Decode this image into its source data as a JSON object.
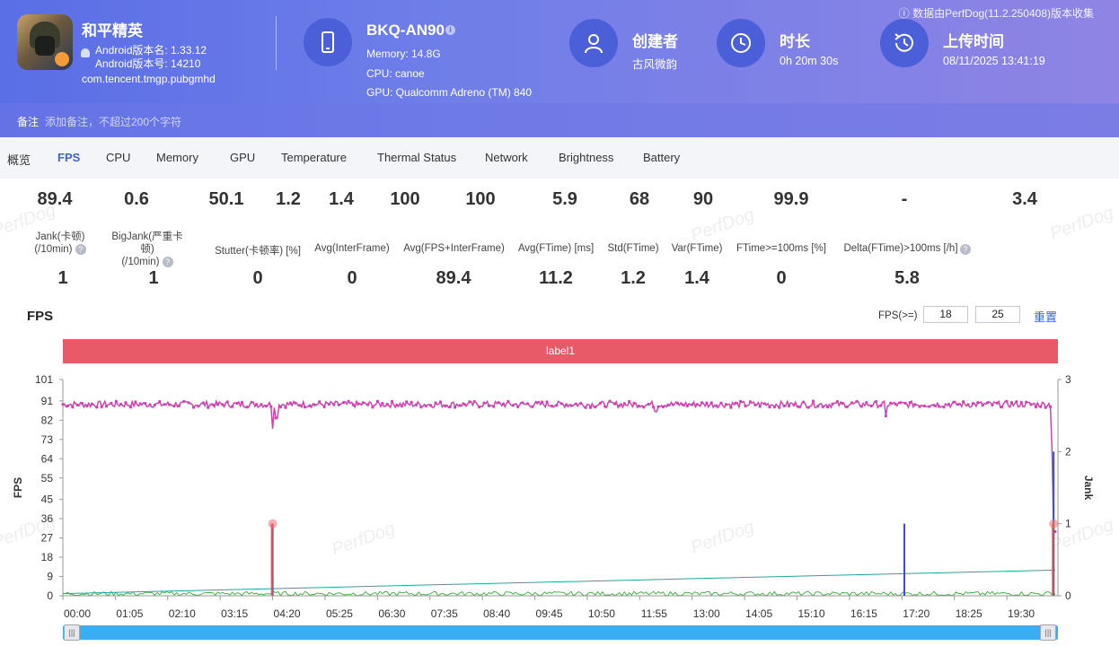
{
  "source_note": "数据由PerfDog(11.2.250408)版本收集",
  "app": {
    "name": "和平精英",
    "version_name": "Android版本名: 1.33.12",
    "version_code": "Android版本号: 14210",
    "package": "com.tencent.tmgp.pubgmhd",
    "icon": "app-icon"
  },
  "device": {
    "name": "BKQ-AN90",
    "memory": "Memory: 14.8G",
    "cpu": "CPU: canoe",
    "gpu": "GPU: Qualcomm Adreno (TM) 840",
    "icon": "phone-icon"
  },
  "creator": {
    "title": "创建者",
    "value": "古风微韵",
    "icon": "user-icon"
  },
  "duration": {
    "title": "时长",
    "value": "0h 20m 30s",
    "icon": "clock-icon"
  },
  "upload": {
    "title": "上传时间",
    "value": "08/11/2025 13:41:19",
    "icon": "history-icon"
  },
  "remark": {
    "label": "备注",
    "placeholder": "添加备注，不超过200个字符"
  },
  "tabs": [
    "概览",
    "FPS",
    "CPU",
    "Memory",
    "GPU",
    "Temperature",
    "Thermal Status",
    "Network",
    "Brightness",
    "Battery"
  ],
  "active_tab": "FPS",
  "top_values": [
    "89.4",
    "0.6",
    "50.1",
    "1.2",
    "1.4",
    "100",
    "100",
    "5.9",
    "68",
    "90",
    "99.9",
    "-",
    "3.4"
  ],
  "stats": [
    {
      "label": "Jank(卡顿)\n(/10min)",
      "value": "1"
    },
    {
      "label": "BigJank(严重卡顿)\n(/10min)",
      "value": "1"
    },
    {
      "label": "Stutter(卡顿率) [%]",
      "value": "0"
    },
    {
      "label": "Avg(InterFrame)",
      "value": "0"
    },
    {
      "label": "Avg(FPS+InterFrame)",
      "value": "89.4"
    },
    {
      "label": "Avg(FTime) [ms]",
      "value": "11.2"
    },
    {
      "label": "Std(FTime)",
      "value": "1.2"
    },
    {
      "label": "Var(FTime)",
      "value": "1.4"
    },
    {
      "label": "FTime>=100ms [%]",
      "value": "0"
    },
    {
      "label": "Delta(FTime)>100ms [/h]",
      "value": "5.8"
    }
  ],
  "watermark": "PerfDog",
  "fps_section": {
    "title": "FPS",
    "threshold_label": "FPS(>=)",
    "threshold_1": "18",
    "threshold_2": "25",
    "reset_label": "重置",
    "label_bar": "label1"
  },
  "chart_data": {
    "type": "line",
    "ylabel": "FPS",
    "y2label": "Jank",
    "yticks": [
      0,
      9,
      18,
      27,
      36,
      45,
      55,
      64,
      73,
      82,
      91,
      101
    ],
    "ylim": [
      0,
      101
    ],
    "y2ticks": [
      0,
      1,
      2,
      3
    ],
    "y2lim": [
      0,
      3
    ],
    "xticks": [
      "00:00",
      "01:05",
      "02:10",
      "03:15",
      "04:20",
      "05:25",
      "06:30",
      "07:35",
      "08:40",
      "09:45",
      "10:50",
      "11:55",
      "13:00",
      "14:05",
      "15:10",
      "16:15",
      "17:20",
      "18:25",
      "19:30"
    ],
    "x_end_seconds": 1230,
    "grid": false,
    "series": [
      {
        "color": "#cc44b0",
        "baseline": 89.4,
        "dips": [
          [
            260,
            78
          ],
          [
            265,
            83
          ],
          [
            735,
            86
          ],
          [
            1020,
            84
          ],
          [
            1227,
            68
          ],
          [
            1229,
            30
          ]
        ]
      },
      {
        "color": "#3b4fd6",
        "spikes": [
          [
            260,
            1
          ],
          [
            1043,
            1
          ],
          [
            1228,
            2
          ]
        ]
      },
      {
        "color": "#e06060",
        "spikes": [
          [
            260,
            1
          ],
          [
            1228,
            1
          ]
        ]
      },
      {
        "color": "#49b24a",
        "noise_max": 2
      },
      {
        "color": "#22a8a0",
        "start": 1,
        "end": 12
      }
    ],
    "markers": [
      [
        260,
        1
      ],
      [
        1228,
        1
      ]
    ]
  }
}
